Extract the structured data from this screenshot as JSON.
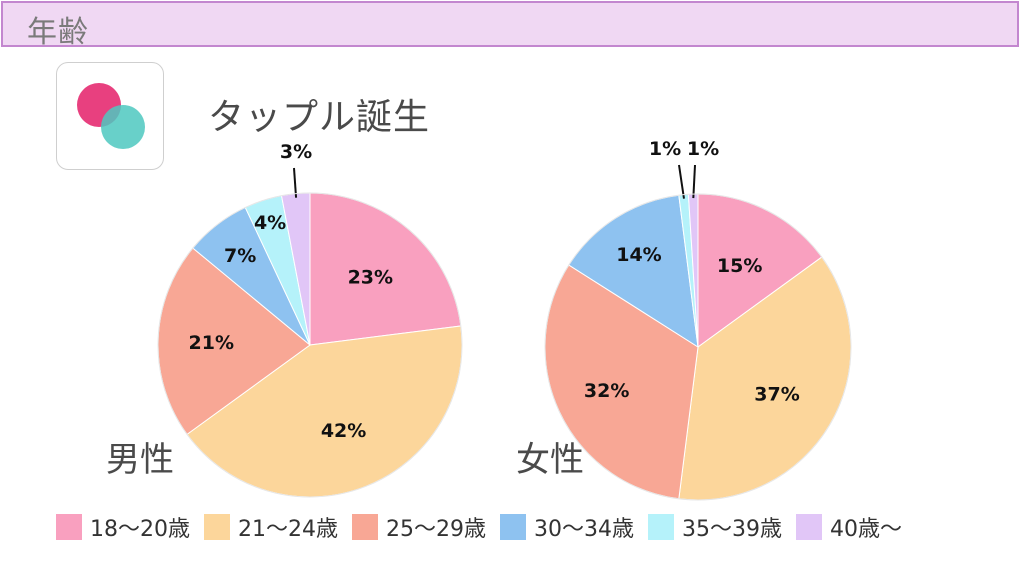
{
  "header": {
    "title": "年齢"
  },
  "app": {
    "name": "タップル誕生"
  },
  "legend": [
    {
      "label": "18〜20歳",
      "color": "#f9a0bf"
    },
    {
      "label": "21〜24歳",
      "color": "#fcd69b"
    },
    {
      "label": "25〜29歳",
      "color": "#f8a795"
    },
    {
      "label": "30〜34歳",
      "color": "#8ec2f0"
    },
    {
      "label": "35〜39歳",
      "color": "#b5f2fa"
    },
    {
      "label": "40歳〜",
      "color": "#e1c6f7"
    }
  ],
  "chart_data": [
    {
      "type": "pie",
      "title": "男性",
      "categories": [
        "18〜20歳",
        "21〜24歳",
        "25〜29歳",
        "30〜34歳",
        "35〜39歳",
        "40歳〜"
      ],
      "values": [
        23,
        42,
        21,
        7,
        4,
        3
      ],
      "labels": [
        "23%",
        "42%",
        "21%",
        "7%",
        "4%",
        "3%"
      ]
    },
    {
      "type": "pie",
      "title": "女性",
      "categories": [
        "18〜20歳",
        "21〜24歳",
        "25〜29歳",
        "30〜34歳",
        "35〜39歳",
        "40歳〜"
      ],
      "values": [
        15,
        37,
        32,
        14,
        1,
        1
      ],
      "labels": [
        "15%",
        "37%",
        "32%",
        "14%",
        "1%",
        "1%"
      ]
    }
  ]
}
